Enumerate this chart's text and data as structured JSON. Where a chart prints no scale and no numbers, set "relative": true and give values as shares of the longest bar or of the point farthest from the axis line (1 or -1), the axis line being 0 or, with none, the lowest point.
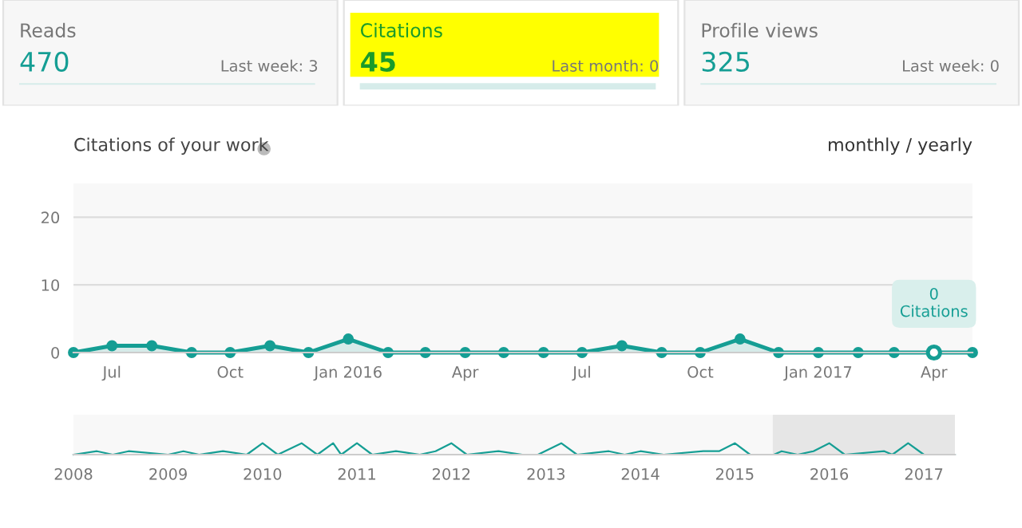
{
  "chart_data": [
    {
      "type": "other",
      "annotations": [
        "Reads",
        "470",
        "Last week: 3",
        "Citations",
        "45",
        "Last month: 0",
        "Profile views",
        "325",
        "Last week: 0"
      ]
    },
    {
      "type": "area",
      "title": "Citations of your work",
      "annotations": [
        "monthly / yearly",
        {
          "text": "0\nCitations",
          "x": "2017-04",
          "y": 0
        }
      ],
      "x": [
        "2015-06",
        "2015-07",
        "2015-08",
        "2015-09",
        "2015-10",
        "2015-11",
        "2015-12",
        "2016-01",
        "2016-02",
        "2016-03",
        "2016-04",
        "2016-05",
        "2016-06",
        "2016-07",
        "2016-08",
        "2016-09",
        "2016-10",
        "2016-11",
        "2016-12",
        "2017-01",
        "2017-02",
        "2017-03",
        "2017-04",
        "2017-05"
      ],
      "series": [
        {
          "color": "#159e94",
          "values": [
            0,
            1,
            1,
            0,
            0,
            1,
            0,
            2,
            0,
            0,
            0,
            0,
            0,
            0,
            1,
            0,
            0,
            2,
            0,
            0,
            0,
            0,
            0,
            0
          ]
        }
      ],
      "xlim": [
        "2015-06",
        "2017-05"
      ],
      "xticks": [
        {
          "value": "2015-07",
          "label": "Jul"
        },
        {
          "value": "2015-10",
          "label": "Oct"
        },
        {
          "value": "2016-01",
          "label": "Jan 2016"
        },
        {
          "value": "2016-04",
          "label": "Apr"
        },
        {
          "value": "2016-07",
          "label": "Jul"
        },
        {
          "value": "2016-10",
          "label": "Oct"
        },
        {
          "value": "2017-01",
          "label": "Jan 2017"
        },
        {
          "value": "2017-04",
          "label": "Apr"
        }
      ],
      "ylim": [
        0,
        25
      ],
      "yticks": [
        0,
        10,
        20
      ],
      "grid": "y",
      "marker": "circle",
      "legend": false
    },
    {
      "type": "line",
      "relative": true,
      "x": [
        "2008-01",
        "2008-04",
        "2008-06",
        "2008-08",
        "2009-01",
        "2009-03",
        "2009-05",
        "2009-08",
        "2009-11",
        "2010-01",
        "2010-03",
        "2010-06",
        "2010-08",
        "2010-10",
        "2010-11",
        "2011-01",
        "2011-03",
        "2011-06",
        "2011-09",
        "2011-11",
        "2012-01",
        "2012-03",
        "2012-07",
        "2012-10",
        "2012-12",
        "2013-03",
        "2013-05",
        "2013-09",
        "2013-11",
        "2014-01",
        "2014-04",
        "2014-09",
        "2014-11",
        "2015-01",
        "2015-03",
        "2015-06",
        "2015-07",
        "2015-09",
        "2015-11",
        "2016-01",
        "2016-03",
        "2016-08",
        "2016-09",
        "2016-11",
        "2017-01",
        "2017-05"
      ],
      "series": [
        {
          "color": "#159e94",
          "values": [
            0,
            0.3,
            0,
            0.3,
            0,
            0.3,
            0,
            0.3,
            0,
            1,
            0,
            1,
            0,
            1,
            0,
            1,
            0,
            0.3,
            0,
            0.3,
            1,
            0,
            0.3,
            0,
            0,
            1,
            0,
            0.3,
            0,
            0.3,
            0,
            0.3,
            0.3,
            1,
            0,
            0,
            0.3,
            0,
            0.3,
            1,
            0,
            0.3,
            0,
            1,
            0,
            0
          ]
        }
      ],
      "xlim": [
        "2008-01",
        "2017-05"
      ],
      "xticks": [
        {
          "value": "2008-01",
          "label": "2008"
        },
        {
          "value": "2009-01",
          "label": "2009"
        },
        {
          "value": "2010-01",
          "label": "2010"
        },
        {
          "value": "2011-01",
          "label": "2011"
        },
        {
          "value": "2012-01",
          "label": "2012"
        },
        {
          "value": "2013-01",
          "label": "2013"
        },
        {
          "value": "2014-01",
          "label": "2014"
        },
        {
          "value": "2015-01",
          "label": "2015"
        },
        {
          "value": "2016-01",
          "label": "2016"
        },
        {
          "value": "2017-01",
          "label": "2017"
        }
      ],
      "bands": [
        {
          "axis": "x",
          "from": "2015-06",
          "to": "2017-05",
          "color": "#e6e6e6"
        }
      ]
    }
  ]
}
